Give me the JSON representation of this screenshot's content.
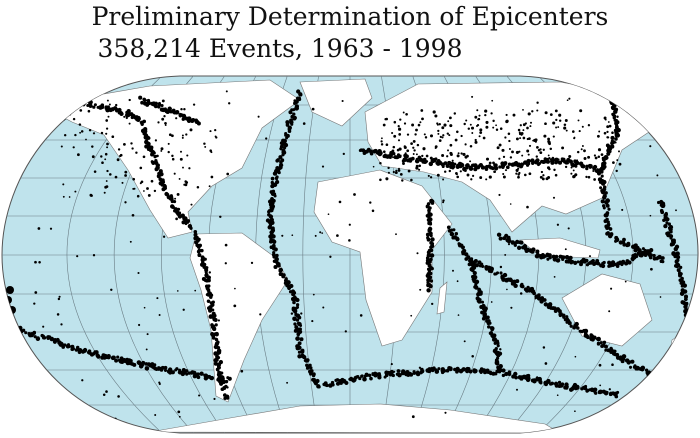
{
  "title": "Preliminary Determination of Epicenters",
  "subtitle": "358,214 Events, 1963 - 1998",
  "map": {
    "projection": "Robinson",
    "colors": {
      "ocean": "#bfe3ec",
      "land": "#ffffff",
      "epicenters": "#000000",
      "graticule": "#6a7d85"
    }
  }
}
